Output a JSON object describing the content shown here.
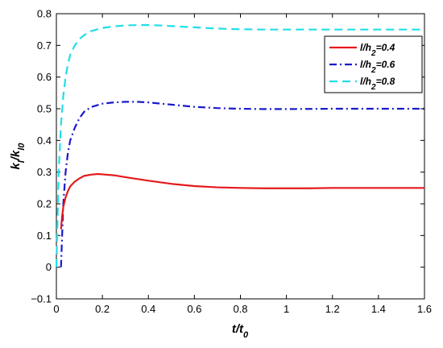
{
  "chart_data": {
    "type": "line",
    "title": "",
    "xlabel": {
      "main": "t/t",
      "sub": "0"
    },
    "ylabel": {
      "k": "k",
      "sub1": "l",
      "slash": "/k",
      "sub2": "l0"
    },
    "xlim": [
      0,
      1.6
    ],
    "ylim": [
      -0.1,
      0.8
    ],
    "xticks": [
      0,
      0.2,
      0.4,
      0.6,
      0.8,
      1,
      1.2,
      1.4,
      1.6
    ],
    "xtick_labels": [
      "0",
      "0.2",
      "0.4",
      "0.6",
      "0.8",
      "1",
      "1.2",
      "1.4",
      "1.6"
    ],
    "yticks": [
      -0.1,
      0,
      0.1,
      0.2,
      0.3,
      0.4,
      0.5,
      0.6,
      0.7,
      0.8
    ],
    "ytick_labels": [
      "−0.1",
      "0",
      "0.1",
      "0.2",
      "0.3",
      "0.4",
      "0.5",
      "0.6",
      "0.7",
      "0.8"
    ],
    "grid": false,
    "legend_position": "top-right",
    "series": [
      {
        "name": {
          "pre": "l/h",
          "sub": "2",
          "post": "=0.4"
        },
        "color": "#e41a1c",
        "dash": "solid",
        "x": [
          0.02,
          0.025,
          0.03,
          0.04,
          0.05,
          0.06,
          0.08,
          0.1,
          0.12,
          0.15,
          0.18,
          0.2,
          0.25,
          0.3,
          0.4,
          0.5,
          0.6,
          0.7,
          0.8,
          0.9,
          1.0,
          1.1,
          1.2,
          1.3,
          1.4,
          1.5,
          1.6
        ],
        "y": [
          0.12,
          0.16,
          0.19,
          0.22,
          0.24,
          0.255,
          0.27,
          0.28,
          0.288,
          0.292,
          0.294,
          0.293,
          0.29,
          0.284,
          0.273,
          0.263,
          0.256,
          0.252,
          0.25,
          0.249,
          0.249,
          0.249,
          0.25,
          0.25,
          0.25,
          0.25,
          0.25
        ]
      },
      {
        "name": {
          "pre": "l/h",
          "sub": "2",
          "post": "=0.6"
        },
        "color": "#1a1acc",
        "dash": "dashdot",
        "x": [
          0.02,
          0.025,
          0.03,
          0.04,
          0.05,
          0.06,
          0.08,
          0.1,
          0.12,
          0.15,
          0.2,
          0.25,
          0.3,
          0.35,
          0.4,
          0.5,
          0.6,
          0.7,
          0.8,
          0.9,
          1.0,
          1.2,
          1.4,
          1.6
        ],
        "y": [
          0.0,
          0.1,
          0.2,
          0.3,
          0.36,
          0.4,
          0.44,
          0.47,
          0.49,
          0.505,
          0.516,
          0.52,
          0.522,
          0.522,
          0.52,
          0.513,
          0.506,
          0.502,
          0.5,
          0.499,
          0.499,
          0.5,
          0.5,
          0.5
        ]
      },
      {
        "name": {
          "pre": "l/h",
          "sub": "2",
          "post": "=0.8"
        },
        "color": "#22dde8",
        "dash": "dashed",
        "x": [
          0.0,
          0.01,
          0.02,
          0.03,
          0.04,
          0.05,
          0.06,
          0.08,
          0.1,
          0.12,
          0.15,
          0.2,
          0.25,
          0.3,
          0.35,
          0.4,
          0.45,
          0.5,
          0.6,
          0.7,
          0.8,
          0.9,
          1.0,
          1.2,
          1.4,
          1.6
        ],
        "y": [
          0.0,
          0.3,
          0.45,
          0.54,
          0.6,
          0.64,
          0.67,
          0.7,
          0.72,
          0.732,
          0.745,
          0.755,
          0.76,
          0.763,
          0.764,
          0.764,
          0.763,
          0.761,
          0.757,
          0.753,
          0.751,
          0.75,
          0.75,
          0.75,
          0.75,
          0.75
        ]
      }
    ]
  }
}
